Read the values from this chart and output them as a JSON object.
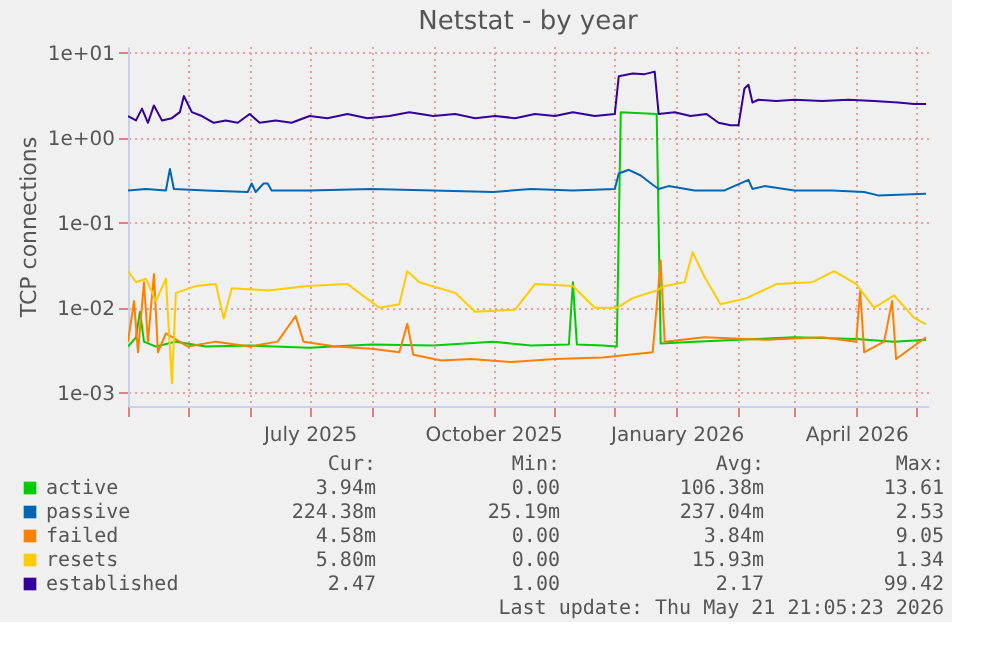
{
  "chart_data": {
    "type": "line",
    "title": "Netstat - by year",
    "ylabel": "TCP connections",
    "log": true,
    "grid": true,
    "legend": "bottom",
    "xlim": [
      "2025-04-01",
      "2026-05-07"
    ],
    "xticks": [
      {
        "value": "2025-04-01",
        "label": null
      },
      {
        "value": "2025-05-01",
        "label": null
      },
      {
        "value": "2025-06-01",
        "label": null
      },
      {
        "value": "2025-07-01",
        "label": "July 2025"
      },
      {
        "value": "2025-08-01",
        "label": null
      },
      {
        "value": "2025-09-01",
        "label": null
      },
      {
        "value": "2025-10-01",
        "label": "October 2025"
      },
      {
        "value": "2025-11-01",
        "label": null
      },
      {
        "value": "2025-12-01",
        "label": null
      },
      {
        "value": "2026-01-01",
        "label": "January 2026"
      },
      {
        "value": "2026-02-01",
        "label": null
      },
      {
        "value": "2026-03-01",
        "label": null
      },
      {
        "value": "2026-04-01",
        "label": "April 2026"
      },
      {
        "value": "2026-05-01",
        "label": null
      }
    ],
    "ylim": [
      0.0007,
      12
    ],
    "yticks": [
      {
        "value": 0.001,
        "label": "1e-03"
      },
      {
        "value": 0.01,
        "label": "1e-02"
      },
      {
        "value": 0.1,
        "label": "1e-01"
      },
      {
        "value": 1,
        "label": "1e+00"
      },
      {
        "value": 10,
        "label": "1e+01"
      }
    ],
    "annotations": [
      "Cur:",
      "Min:",
      "Avg:",
      "Max:",
      "3.94m",
      "0.00",
      "106.38m",
      "13.61",
      "224.38m",
      "25.19m",
      "237.04m",
      "2.53",
      "4.58m",
      "0.00",
      "3.84m",
      "9.05",
      "5.80m",
      "0.00",
      "15.93m",
      "1.34",
      "2.47",
      "1.00",
      "2.17",
      "99.42",
      "Last update: Thu May 21 21:05:23 2026"
    ],
    "series": [
      {
        "name": "active",
        "color": "#00cc00",
        "x": [
          "2025-04-01",
          "2025-04-05",
          "2025-04-07",
          "2025-04-09",
          "2025-04-15",
          "2025-04-25",
          "2025-05-10",
          "2025-06-01",
          "2025-07-01",
          "2025-08-01",
          "2025-09-01",
          "2025-10-01",
          "2025-10-20",
          "2025-11-08",
          "2025-11-10",
          "2025-11-12",
          "2025-11-25",
          "2025-12-02",
          "2025-12-04",
          "2025-12-22",
          "2025-12-24",
          "2026-01-10",
          "2026-02-01",
          "2026-03-01",
          "2026-04-01",
          "2026-04-20",
          "2026-05-06"
        ],
        "values": [
          0.0035,
          0.0045,
          0.009,
          0.004,
          0.0035,
          0.004,
          0.0035,
          0.0036,
          0.0034,
          0.0037,
          0.0036,
          0.004,
          0.0036,
          0.0037,
          0.02,
          0.0037,
          0.0036,
          0.0035,
          2.0,
          1.9,
          0.0038,
          0.004,
          0.0042,
          0.0045,
          0.0043,
          0.004,
          0.0042
        ]
      },
      {
        "name": "passive",
        "color": "#0066b3",
        "x": [
          "2025-04-01",
          "2025-04-10",
          "2025-04-20",
          "2025-04-22",
          "2025-04-24",
          "2025-05-10",
          "2025-05-31",
          "2025-06-02",
          "2025-06-04",
          "2025-06-08",
          "2025-06-10",
          "2025-06-12",
          "2025-07-01",
          "2025-08-01",
          "2025-09-01",
          "2025-10-01",
          "2025-10-20",
          "2025-11-10",
          "2025-12-01",
          "2025-12-03",
          "2025-12-08",
          "2025-12-14",
          "2025-12-20",
          "2025-12-23",
          "2025-12-28",
          "2026-01-10",
          "2026-01-25",
          "2026-02-06",
          "2026-02-08",
          "2026-02-14",
          "2026-03-01",
          "2026-03-20",
          "2026-04-05",
          "2026-04-12",
          "2026-05-06"
        ],
        "values": [
          0.24,
          0.25,
          0.24,
          0.43,
          0.25,
          0.24,
          0.23,
          0.29,
          0.23,
          0.29,
          0.29,
          0.24,
          0.24,
          0.25,
          0.24,
          0.23,
          0.25,
          0.24,
          0.25,
          0.38,
          0.42,
          0.36,
          0.28,
          0.25,
          0.27,
          0.24,
          0.24,
          0.32,
          0.25,
          0.27,
          0.24,
          0.24,
          0.23,
          0.21,
          0.22
        ]
      },
      {
        "name": "failed",
        "color": "#ff8000",
        "x": [
          "2025-04-01",
          "2025-04-04",
          "2025-04-06",
          "2025-04-09",
          "2025-04-11",
          "2025-04-14",
          "2025-04-16",
          "2025-04-20",
          "2025-05-01",
          "2025-05-15",
          "2025-06-01",
          "2025-06-15",
          "2025-06-24",
          "2025-06-28",
          "2025-07-14",
          "2025-08-01",
          "2025-08-15",
          "2025-08-19",
          "2025-08-22",
          "2025-09-05",
          "2025-09-20",
          "2025-10-10",
          "2025-11-01",
          "2025-11-25",
          "2025-12-20",
          "2025-12-24",
          "2025-12-26",
          "2026-01-15",
          "2026-02-15",
          "2026-03-15",
          "2026-04-01",
          "2026-04-03",
          "2026-04-05",
          "2026-04-15",
          "2026-04-19",
          "2026-04-21",
          "2026-05-06"
        ],
        "values": [
          0.004,
          0.012,
          0.003,
          0.02,
          0.004,
          0.025,
          0.003,
          0.005,
          0.0035,
          0.004,
          0.0035,
          0.004,
          0.008,
          0.004,
          0.0035,
          0.0033,
          0.003,
          0.0065,
          0.0028,
          0.0024,
          0.0025,
          0.0023,
          0.0025,
          0.0026,
          0.003,
          0.036,
          0.004,
          0.0045,
          0.0042,
          0.0045,
          0.004,
          0.016,
          0.003,
          0.004,
          0.012,
          0.0025,
          0.0045
        ]
      },
      {
        "name": "resets",
        "color": "#ffcc00",
        "x": [
          "2025-04-01",
          "2025-04-05",
          "2025-04-10",
          "2025-04-15",
          "2025-04-20",
          "2025-04-23",
          "2025-04-25",
          "2025-05-05",
          "2025-05-15",
          "2025-05-19",
          "2025-05-23",
          "2025-06-10",
          "2025-06-30",
          "2025-07-20",
          "2025-08-05",
          "2025-08-15",
          "2025-08-19",
          "2025-08-25",
          "2025-09-12",
          "2025-09-22",
          "2025-10-12",
          "2025-10-22",
          "2025-11-10",
          "2025-11-21",
          "2025-12-02",
          "2025-12-10",
          "2025-12-22",
          "2025-12-26",
          "2026-01-05",
          "2026-01-09",
          "2026-01-15",
          "2026-01-23",
          "2026-02-05",
          "2026-02-20",
          "2026-03-10",
          "2026-03-21",
          "2026-04-01",
          "2026-04-10",
          "2026-04-20",
          "2026-04-30",
          "2026-05-06"
        ],
        "values": [
          0.027,
          0.02,
          0.022,
          0.012,
          0.022,
          0.0013,
          0.015,
          0.018,
          0.019,
          0.0075,
          0.017,
          0.016,
          0.018,
          0.019,
          0.01,
          0.011,
          0.027,
          0.02,
          0.015,
          0.009,
          0.0095,
          0.019,
          0.018,
          0.01,
          0.01,
          0.013,
          0.016,
          0.018,
          0.02,
          0.045,
          0.023,
          0.011,
          0.013,
          0.019,
          0.02,
          0.027,
          0.019,
          0.01,
          0.014,
          0.0076,
          0.0064
        ]
      },
      {
        "name": "established",
        "color": "#330099",
        "x": [
          "2025-04-01",
          "2025-04-05",
          "2025-04-08",
          "2025-04-11",
          "2025-04-14",
          "2025-04-18",
          "2025-04-23",
          "2025-04-27",
          "2025-04-29",
          "2025-05-03",
          "2025-05-08",
          "2025-05-14",
          "2025-05-20",
          "2025-05-26",
          "2025-06-01",
          "2025-06-06",
          "2025-06-14",
          "2025-06-22",
          "2025-07-01",
          "2025-07-10",
          "2025-07-20",
          "2025-07-30",
          "2025-08-10",
          "2025-08-20",
          "2025-09-01",
          "2025-09-12",
          "2025-09-22",
          "2025-10-02",
          "2025-10-12",
          "2025-10-22",
          "2025-11-01",
          "2025-11-10",
          "2025-11-21",
          "2025-12-01",
          "2025-12-03",
          "2025-12-10",
          "2025-12-16",
          "2025-12-21",
          "2025-12-23",
          "2025-12-31",
          "2026-01-08",
          "2026-01-16",
          "2026-01-22",
          "2026-01-28",
          "2026-02-01",
          "2026-02-04",
          "2026-02-06",
          "2026-02-08",
          "2026-02-11",
          "2026-02-20",
          "2026-03-01",
          "2026-03-15",
          "2026-03-28",
          "2026-04-10",
          "2026-04-22",
          "2026-04-30",
          "2026-05-06"
        ],
        "values": [
          1.8,
          1.6,
          2.2,
          1.5,
          2.4,
          1.6,
          1.7,
          2.0,
          3.1,
          2.0,
          1.8,
          1.5,
          1.6,
          1.5,
          1.9,
          1.5,
          1.6,
          1.5,
          1.8,
          1.7,
          1.9,
          1.7,
          1.8,
          2.0,
          1.8,
          1.9,
          1.7,
          1.8,
          1.7,
          1.9,
          1.8,
          2.0,
          1.8,
          1.9,
          5.3,
          5.7,
          5.6,
          6.0,
          1.9,
          2.0,
          1.8,
          1.9,
          1.5,
          1.4,
          1.4,
          3.8,
          4.2,
          2.6,
          2.8,
          2.7,
          2.8,
          2.7,
          2.8,
          2.7,
          2.6,
          2.5,
          2.5
        ]
      }
    ]
  }
}
